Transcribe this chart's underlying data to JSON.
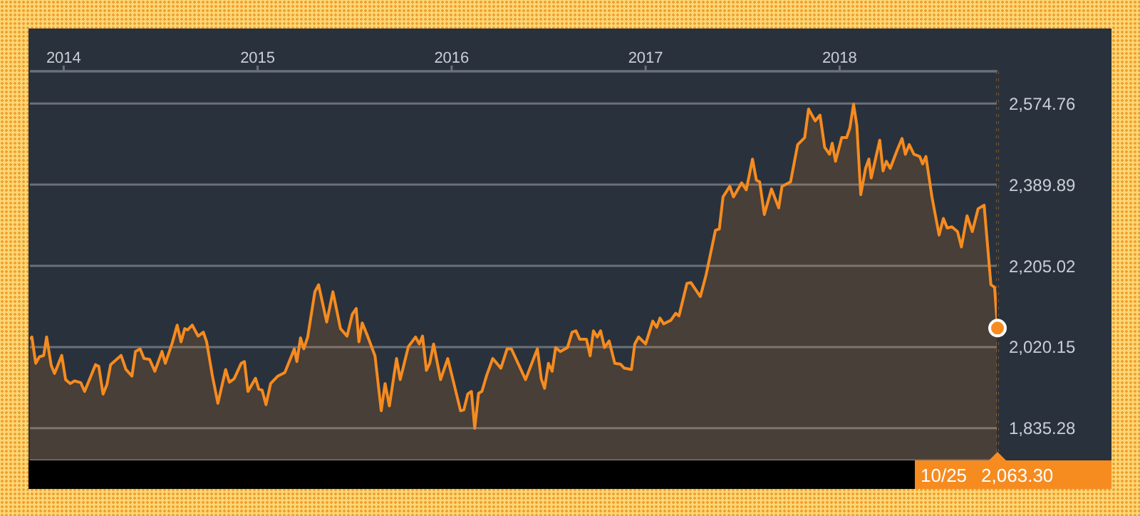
{
  "chart_data": {
    "type": "area",
    "color": "#f68b1f",
    "x": [
      2013.826,
      2013.836,
      2013.856,
      2013.875,
      2013.897,
      2013.912,
      2013.936,
      2013.953,
      2013.99,
      2014.01,
      2014.034,
      2014.056,
      2014.088,
      2014.108,
      2014.164,
      2014.181,
      2014.203,
      2014.223,
      2014.242,
      2014.296,
      2014.321,
      2014.352,
      2014.37,
      2014.394,
      2014.414,
      2014.443,
      2014.47,
      2014.507,
      2014.524,
      2014.56,
      2014.585,
      2014.605,
      2014.624,
      2014.639,
      2014.663,
      2014.693,
      2014.72,
      2014.737,
      2014.766,
      2014.795,
      2014.835,
      2014.854,
      2014.879,
      2014.915,
      2014.932,
      2014.95,
      2014.989,
      2015.006,
      2015.023,
      2015.043,
      2015.067,
      2015.104,
      2015.14,
      2015.189,
      2015.202,
      2015.221,
      2015.238,
      2015.258,
      2015.295,
      2015.314,
      2015.356,
      2015.388,
      2015.427,
      2015.461,
      2015.488,
      2015.508,
      2015.522,
      2015.539,
      2015.564,
      2015.605,
      2015.637,
      2015.657,
      2015.679,
      2015.716,
      2015.735,
      2015.777,
      2015.814,
      2015.833,
      2015.85,
      2015.87,
      2015.887,
      2015.907,
      2015.943,
      2015.98,
      2016.046,
      2016.063,
      2016.083,
      2016.102,
      2016.119,
      2016.139,
      2016.156,
      2016.181,
      2016.212,
      2016.254,
      2016.286,
      2016.308,
      2016.381,
      2016.442,
      2016.462,
      2016.479,
      2016.499,
      2016.518,
      2016.536,
      2016.56,
      2016.597,
      2016.621,
      2016.641,
      2016.66,
      2016.695,
      2016.714,
      2016.731,
      2016.751,
      2016.768,
      2016.788,
      2016.812,
      2016.841,
      2016.871,
      2016.89,
      2016.927,
      2016.944,
      2016.964,
      2017.0,
      2017.037,
      2017.057,
      2017.074,
      2017.093,
      2017.13,
      2017.155,
      2017.172,
      2017.213,
      2017.233,
      2017.282,
      2017.311,
      2017.36,
      2017.38,
      2017.399,
      2017.434,
      2017.453,
      2017.495,
      2017.519,
      2017.551,
      2017.571,
      2017.588,
      2017.612,
      2017.649,
      2017.686,
      2017.703,
      2017.747,
      2017.784,
      2017.82,
      2017.84,
      2017.874,
      2017.899,
      2017.923,
      2017.948,
      2017.962,
      2017.979,
      2018.011,
      2018.036,
      2018.053,
      2018.072,
      2018.089,
      2018.109,
      2018.134,
      2018.151,
      2018.163,
      2018.207,
      2018.224,
      2018.241,
      2018.261,
      2018.298,
      2018.322,
      2018.339,
      2018.359,
      2018.383,
      2018.413,
      2018.428,
      2018.445,
      2018.476,
      2018.513,
      2018.535,
      2018.555,
      2018.579,
      2018.608,
      2018.628,
      2018.657,
      2018.684,
      2018.714,
      2018.745,
      2018.78,
      2018.799,
      2018.814
    ],
    "values": [
      2038,
      2043,
      1983,
      1998,
      2001,
      2043,
      1978,
      1960,
      2001,
      1946,
      1937,
      1943,
      1939,
      1919,
      1980,
      1976,
      1913,
      1935,
      1980,
      2001,
      1969,
      1954,
      2010,
      2016,
      1994,
      1992,
      1965,
      2010,
      1983,
      2030,
      2070,
      2032,
      2062,
      2059,
      2070,
      2045,
      2054,
      2032,
      1956,
      1892,
      1969,
      1940,
      1948,
      1983,
      1987,
      1919,
      1949,
      1924,
      1922,
      1889,
      1937,
      1954,
      1962,
      2016,
      1987,
      2041,
      2016,
      2043,
      2146,
      2162,
      2077,
      2146,
      2062,
      2045,
      2095,
      2108,
      2032,
      2075,
      2048,
      2000,
      1875,
      1937,
      1886,
      1994,
      1946,
      2021,
      2043,
      2027,
      2045,
      1967,
      1983,
      2027,
      1946,
      1994,
      1875,
      1877,
      1913,
      1919,
      1835,
      1915,
      1919,
      1956,
      1994,
      1972,
      2016,
      2016,
      1946,
      2016,
      1948,
      1926,
      1983,
      1965,
      2019,
      2010,
      2019,
      2054,
      2057,
      2038,
      2038,
      2000,
      2057,
      2043,
      2057,
      2019,
      2034,
      1983,
      1981,
      1972,
      1969,
      2027,
      2043,
      2027,
      2079,
      2065,
      2086,
      2073,
      2081,
      2097,
      2091,
      2165,
      2167,
      2135,
      2183,
      2286,
      2289,
      2362,
      2386,
      2362,
      2394,
      2378,
      2448,
      2400,
      2396,
      2322,
      2380,
      2337,
      2386,
      2396,
      2481,
      2497,
      2562,
      2535,
      2548,
      2475,
      2459,
      2484,
      2443,
      2497,
      2497,
      2519,
      2573,
      2524,
      2367,
      2427,
      2448,
      2405,
      2491,
      2421,
      2443,
      2427,
      2470,
      2495,
      2459,
      2481,
      2459,
      2454,
      2437,
      2454,
      2362,
      2275,
      2313,
      2291,
      2294,
      2283,
      2248,
      2319,
      2283,
      2335,
      2343,
      2162,
      2156,
      2063.3
    ],
    "xlim": [
      2013.826,
      2018.814
    ],
    "xticks": [
      2014,
      2015,
      2016,
      2017,
      2018
    ],
    "ylim": [
      1762,
      2648
    ],
    "yticks": [
      {
        "value": 1835.28,
        "label": "1,835.28"
      },
      {
        "value": 2020.15,
        "label": "2,020.15"
      },
      {
        "value": 2205.02,
        "label": "2,205.02"
      },
      {
        "value": 2389.89,
        "label": "2,389.89"
      },
      {
        "value": 2574.76,
        "label": "2,574.76"
      }
    ],
    "grid": "y",
    "ref_lines": [
      {
        "axis": "x",
        "value": 2018.814,
        "color": "#c77a2e",
        "line_style": "dotted"
      }
    ],
    "annotations": [
      "10/25",
      "2,063.30"
    ]
  }
}
